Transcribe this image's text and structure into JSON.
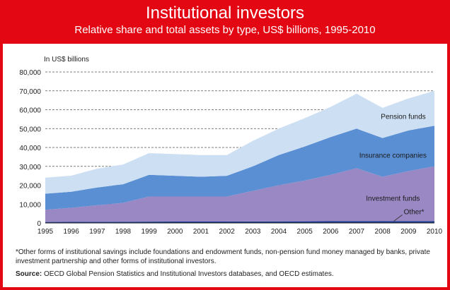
{
  "header": {
    "title": "Institutional investors",
    "subtitle": "Relative share and total assets by type, US$ billions, 1995-2010"
  },
  "notes": {
    "footnote": "*Other forms of institutional savings include foundations and endowment funds, non-pension fund money managed by banks, private investment partnership and other forms of institutional investors.",
    "source_label": "Source:",
    "source_text": "OECD Global Pension Statistics and Institutional Investors databases, and OECD estimates."
  },
  "colors": {
    "background": "#e30613",
    "other": "#1f3d8c",
    "investment": "#9a88c4",
    "insurance": "#5b8fd3",
    "pension": "#cddff2"
  },
  "chart_data": {
    "type": "area",
    "stacked": true,
    "unit_label": "In US$ billions",
    "x": [
      "1995",
      "1996",
      "1997",
      "1998",
      "1999",
      "2000",
      "2001",
      "2002",
      "2003",
      "2004",
      "2005",
      "2006",
      "2007",
      "2008",
      "2009",
      "2010"
    ],
    "ylim": [
      0,
      80000
    ],
    "yticks": [
      "0",
      "10,000",
      "20,000",
      "30,000",
      "40,000",
      "50,000",
      "60,000",
      "70,000",
      "80,000"
    ],
    "grid": true,
    "series": [
      {
        "name": "Other*",
        "values": [
          500,
          550,
          600,
          650,
          700,
          750,
          750,
          750,
          800,
          850,
          900,
          950,
          1000,
          950,
          1000,
          1050
        ]
      },
      {
        "name": "Investment funds",
        "values": [
          6500,
          7500,
          8800,
          10000,
          13300,
          13250,
          13250,
          13250,
          16200,
          19150,
          21600,
          24550,
          28000,
          23550,
          26500,
          28950
        ]
      },
      {
        "name": "Insurance companies",
        "values": [
          8500,
          8500,
          9400,
          9850,
          11500,
          11000,
          10500,
          11000,
          13000,
          16000,
          18000,
          20000,
          21000,
          20500,
          21500,
          21500
        ]
      },
      {
        "name": "Pension funds",
        "values": [
          8500,
          8500,
          10000,
          10500,
          11500,
          11500,
          11500,
          11000,
          13500,
          14000,
          15000,
          16000,
          18500,
          16000,
          17000,
          18500
        ]
      }
    ]
  }
}
